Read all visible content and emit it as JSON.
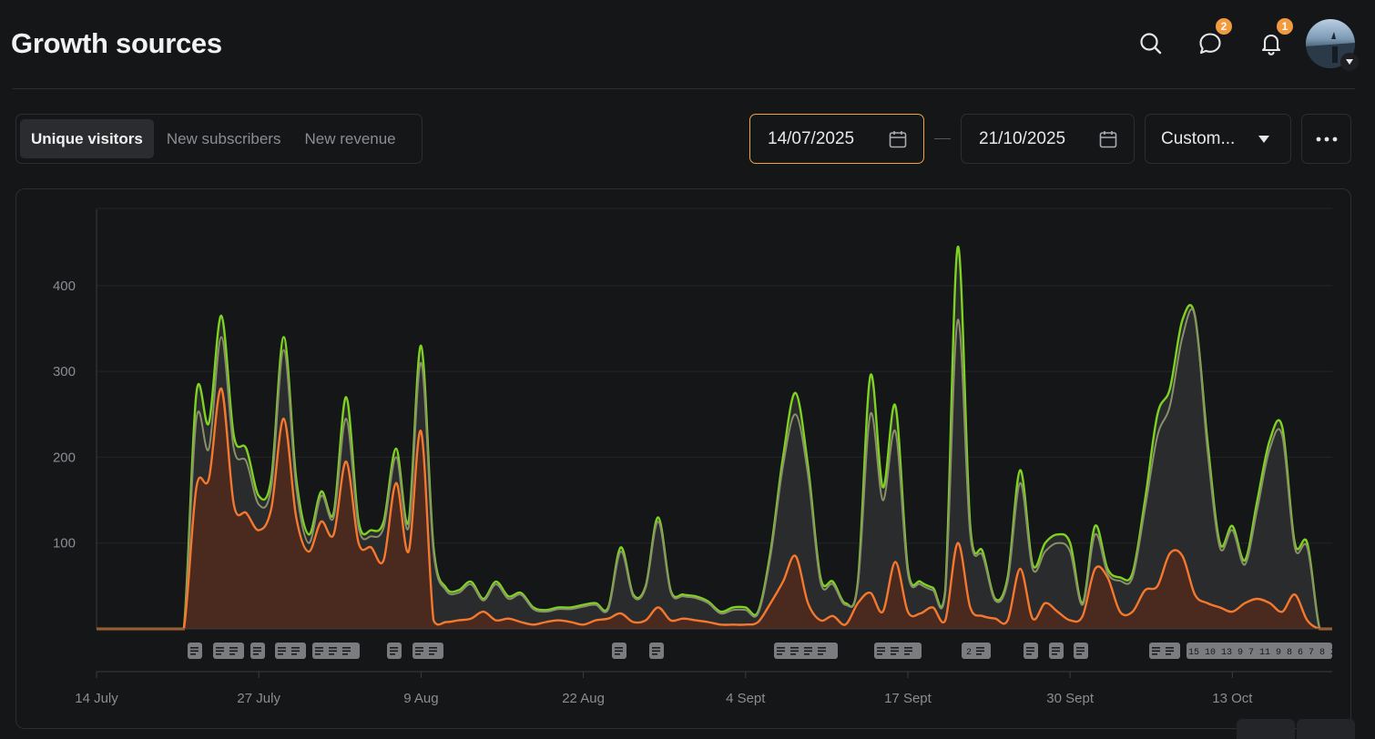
{
  "header": {
    "title": "Growth sources",
    "messages_badge": "2",
    "notifications_badge": "1"
  },
  "tabs": [
    {
      "label": "Unique visitors",
      "active": true
    },
    {
      "label": "New subscribers",
      "active": false
    },
    {
      "label": "New revenue",
      "active": false
    }
  ],
  "date_range": {
    "start": "14/07/2025",
    "end": "21/10/2025",
    "preset": "Custom..."
  },
  "colors": {
    "total_line": "#7ed321",
    "secondary_line": "#8a8f6a",
    "direct_line": "#f5782f",
    "orange_fill": "#4a2a1e",
    "gray_fill": "#2a2b2c",
    "accent_focus": "#f0a43a"
  },
  "chart_data": {
    "type": "area",
    "title": "",
    "xlabel": "",
    "ylabel": "",
    "ylim": [
      0,
      490
    ],
    "grid": true,
    "x": [
      "14 Jul",
      "15 Jul",
      "16 Jul",
      "17 Jul",
      "18 Jul",
      "19 Jul",
      "20 Jul",
      "21 Jul",
      "22 Jul",
      "23 Jul",
      "24 Jul",
      "25 Jul",
      "26 Jul",
      "27 Jul",
      "28 Jul",
      "29 Jul",
      "30 Jul",
      "31 Jul",
      "1 Aug",
      "2 Aug",
      "3 Aug",
      "4 Aug",
      "5 Aug",
      "6 Aug",
      "7 Aug",
      "8 Aug",
      "9 Aug",
      "10 Aug",
      "11 Aug",
      "12 Aug",
      "13 Aug",
      "14 Aug",
      "15 Aug",
      "16 Aug",
      "17 Aug",
      "18 Aug",
      "19 Aug",
      "20 Aug",
      "21 Aug",
      "22 Aug",
      "23 Aug",
      "24 Aug",
      "25 Aug",
      "26 Aug",
      "27 Aug",
      "28 Aug",
      "29 Aug",
      "30 Aug",
      "31 Aug",
      "1 Sep",
      "2 Sep",
      "3 Sep",
      "4 Sep",
      "5 Sep",
      "6 Sep",
      "7 Sep",
      "8 Sep",
      "9 Sep",
      "10 Sep",
      "11 Sep",
      "12 Sep",
      "13 Sep",
      "14 Sep",
      "15 Sep",
      "16 Sep",
      "17 Sep",
      "18 Sep",
      "19 Sep",
      "20 Sep",
      "21 Sep",
      "22 Sep",
      "23 Sep",
      "24 Sep",
      "25 Sep",
      "26 Sep",
      "27 Sep",
      "28 Sep",
      "29 Sep",
      "30 Sep",
      "1 Oct",
      "2 Oct",
      "3 Oct",
      "4 Oct",
      "5 Oct",
      "6 Oct",
      "7 Oct",
      "8 Oct",
      "9 Oct",
      "10 Oct",
      "11 Oct",
      "12 Oct",
      "13 Oct",
      "14 Oct",
      "15 Oct",
      "16 Oct",
      "17 Oct",
      "18 Oct",
      "19 Oct",
      "20 Oct",
      "21 Oct"
    ],
    "x_ticks": [
      "14 July",
      "27 July",
      "9 Aug",
      "22 Aug",
      "4 Sept",
      "17 Sept",
      "30 Sept",
      "13 Oct"
    ],
    "x_tick_index": [
      0,
      13,
      26,
      39,
      52,
      65,
      78,
      91
    ],
    "y_ticks": [
      100,
      200,
      300,
      400
    ],
    "series": [
      {
        "values": [
          0,
          0,
          0,
          0,
          0,
          0,
          0,
          0,
          275,
          240,
          365,
          225,
          210,
          155,
          175,
          340,
          175,
          110,
          160,
          135,
          270,
          125,
          115,
          125,
          210,
          125,
          330,
          95,
          48,
          45,
          55,
          35,
          55,
          38,
          42,
          25,
          22,
          25,
          25,
          28,
          30,
          25,
          95,
          40,
          50,
          130,
          45,
          40,
          38,
          32,
          20,
          25,
          25,
          20,
          90,
          200,
          275,
          190,
          60,
          55,
          30,
          55,
          295,
          165,
          260,
          70,
          55,
          48,
          45,
          445,
          120,
          90,
          35,
          60,
          185,
          75,
          100,
          110,
          100,
          30,
          120,
          70,
          60,
          65,
          150,
          250,
          280,
          360,
          365,
          220,
          100,
          120,
          80,
          150,
          220,
          235,
          100,
          100,
          0,
          0
        ]
      },
      {
        "values": [
          0,
          0,
          0,
          0,
          0,
          0,
          0,
          0,
          245,
          210,
          340,
          210,
          195,
          145,
          165,
          325,
          165,
          100,
          155,
          130,
          245,
          118,
          108,
          118,
          200,
          118,
          310,
          90,
          45,
          42,
          52,
          33,
          52,
          35,
          40,
          23,
          20,
          23,
          23,
          26,
          28,
          23,
          90,
          38,
          48,
          125,
          43,
          38,
          36,
          30,
          18,
          22,
          22,
          18,
          85,
          190,
          250,
          180,
          55,
          52,
          28,
          52,
          250,
          150,
          230,
          65,
          52,
          45,
          42,
          360,
          110,
          85,
          33,
          55,
          170,
          70,
          90,
          100,
          90,
          28,
          110,
          65,
          56,
          60,
          140,
          225,
          260,
          340,
          365,
          210,
          95,
          115,
          75,
          140,
          210,
          225,
          95,
          95,
          0,
          0
        ]
      },
      {
        "values": [
          0,
          0,
          0,
          0,
          0,
          0,
          0,
          0,
          165,
          175,
          280,
          145,
          135,
          115,
          140,
          245,
          130,
          90,
          125,
          110,
          195,
          100,
          95,
          80,
          170,
          90,
          230,
          10,
          8,
          10,
          12,
          20,
          10,
          12,
          8,
          5,
          8,
          10,
          8,
          5,
          10,
          12,
          18,
          8,
          10,
          25,
          10,
          12,
          10,
          8,
          5,
          5,
          5,
          8,
          30,
          55,
          85,
          30,
          10,
          15,
          5,
          30,
          42,
          20,
          78,
          20,
          18,
          25,
          10,
          100,
          25,
          15,
          12,
          10,
          70,
          12,
          30,
          20,
          10,
          15,
          70,
          60,
          20,
          20,
          45,
          50,
          88,
          85,
          40,
          30,
          25,
          20,
          30,
          35,
          30,
          20,
          40,
          10,
          0,
          0
        ]
      }
    ]
  }
}
